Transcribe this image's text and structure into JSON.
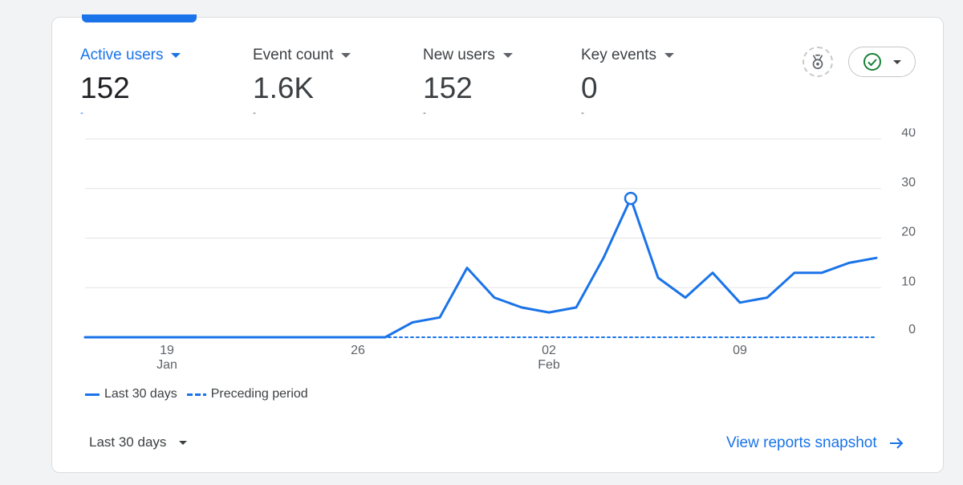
{
  "metrics": [
    {
      "label": "Active users",
      "value": "152",
      "delta": "-"
    },
    {
      "label": "Event count",
      "value": "1.6K",
      "delta": "-"
    },
    {
      "label": "New users",
      "value": "152",
      "delta": "-"
    },
    {
      "label": "Key events",
      "value": "0",
      "delta": "-"
    }
  ],
  "colors": {
    "accent": "#1a73e8",
    "check": "#188038"
  },
  "icons": {
    "insights": "medal-icon",
    "compare": "check-circle-icon"
  },
  "legend": {
    "current": "Last 30 days",
    "previous": "Preceding period"
  },
  "footer": {
    "range": "Last 30 days",
    "link": "View reports snapshot"
  },
  "chart_data": {
    "type": "line",
    "title": "",
    "xlabel": "",
    "ylabel": "",
    "ylim": [
      0,
      40
    ],
    "yticks": [
      0,
      10,
      20,
      30,
      40
    ],
    "x": [
      "Jan 16",
      "Jan 17",
      "Jan 18",
      "Jan 19",
      "Jan 20",
      "Jan 21",
      "Jan 22",
      "Jan 23",
      "Jan 24",
      "Jan 25",
      "Jan 26",
      "Jan 27",
      "Jan 28",
      "Jan 29",
      "Jan 30",
      "Jan 31",
      "Feb 01",
      "Feb 02",
      "Feb 03",
      "Feb 04",
      "Feb 05",
      "Feb 06",
      "Feb 07",
      "Feb 08",
      "Feb 09",
      "Feb 10",
      "Feb 11",
      "Feb 12",
      "Feb 13",
      "Feb 14"
    ],
    "xticks": [
      {
        "index": 3,
        "label": "19",
        "sub": "Jan"
      },
      {
        "index": 10,
        "label": "26",
        "sub": ""
      },
      {
        "index": 17,
        "label": "02",
        "sub": "Feb"
      },
      {
        "index": 24,
        "label": "09",
        "sub": ""
      }
    ],
    "series": [
      {
        "name": "Last 30 days",
        "style": "solid",
        "values": [
          0,
          0,
          0,
          0,
          0,
          0,
          0,
          0,
          0,
          0,
          0,
          0,
          3,
          4,
          14,
          8,
          6,
          5,
          6,
          16,
          28,
          12,
          8,
          13,
          7,
          8,
          13,
          13,
          15,
          16
        ]
      },
      {
        "name": "Preceding period",
        "style": "dashed",
        "values": [
          0,
          0,
          0,
          0,
          0,
          0,
          0,
          0,
          0,
          0,
          0,
          0,
          0,
          0,
          0,
          0,
          0,
          0,
          0,
          0,
          0,
          0,
          0,
          0,
          0,
          0,
          0,
          0,
          0,
          0
        ]
      }
    ],
    "highlight_index": 20,
    "grid": true,
    "legend_position": "bottom-left"
  }
}
